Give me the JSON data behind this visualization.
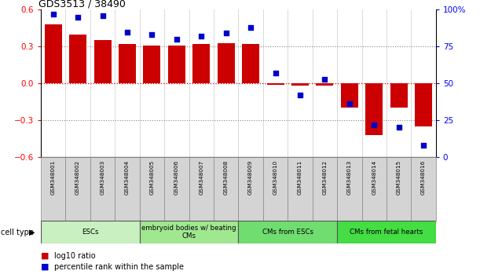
{
  "title": "GDS3513 / 38490",
  "samples": [
    "GSM348001",
    "GSM348002",
    "GSM348003",
    "GSM348004",
    "GSM348005",
    "GSM348006",
    "GSM348007",
    "GSM348008",
    "GSM348009",
    "GSM348010",
    "GSM348011",
    "GSM348012",
    "GSM348013",
    "GSM348014",
    "GSM348015",
    "GSM348016"
  ],
  "log10_ratio": [
    0.48,
    0.4,
    0.35,
    0.32,
    0.31,
    0.31,
    0.32,
    0.33,
    0.32,
    -0.01,
    -0.02,
    -0.02,
    -0.2,
    -0.42,
    -0.2,
    -0.35
  ],
  "percentile_rank": [
    97,
    95,
    96,
    85,
    83,
    80,
    82,
    84,
    88,
    57,
    42,
    53,
    36,
    22,
    20,
    8
  ],
  "bar_color": "#cc0000",
  "dot_color": "#0000cc",
  "ylim_left": [
    -0.6,
    0.6
  ],
  "ylim_right": [
    0,
    100
  ],
  "yticks_left": [
    -0.6,
    -0.3,
    0.0,
    0.3,
    0.6
  ],
  "yticks_right": [
    0,
    25,
    50,
    75,
    100
  ],
  "cell_groups": [
    {
      "label": "ESCs",
      "start": 0,
      "end": 4,
      "color": "#c8f0c0"
    },
    {
      "label": "embryoid bodies w/ beating\nCMs",
      "start": 4,
      "end": 8,
      "color": "#a0e890"
    },
    {
      "label": "CMs from ESCs",
      "start": 8,
      "end": 12,
      "color": "#70dd70"
    },
    {
      "label": "CMs from fetal hearts",
      "start": 12,
      "end": 16,
      "color": "#44dd44"
    }
  ],
  "legend_bar_label": "log10 ratio",
  "legend_dot_label": "percentile rank within the sample",
  "cell_type_label": "cell type",
  "sample_bg_color": "#d4d4d4",
  "dotted_line_color": "#888888",
  "zero_line_color": "#cc0000",
  "vert_line_color": "#cccccc"
}
